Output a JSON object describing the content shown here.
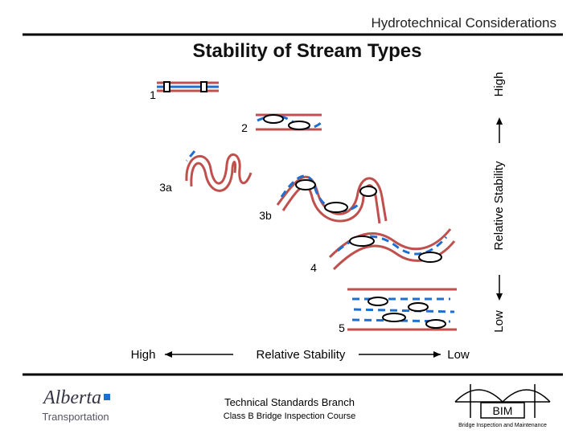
{
  "header": {
    "section": "Hydrotechnical Considerations",
    "title": "Stability of Stream Types"
  },
  "diagram": {
    "stream_labels": [
      "1",
      "2",
      "3a",
      "3b",
      "4",
      "5"
    ],
    "x_axis": {
      "high": "High",
      "label": "Relative Stability",
      "low": "Low"
    },
    "y_axis": {
      "high": "High",
      "label": "Relative Stability",
      "low": "Low"
    }
  },
  "footer": {
    "branch": "Technical Standards Branch",
    "course": "Class B Bridge Inspection Course",
    "logo_name": "Alberta",
    "logo_sub": "Transportation",
    "bim": "BIM",
    "bim_sub": "Bridge Inspection and Maintenance"
  }
}
